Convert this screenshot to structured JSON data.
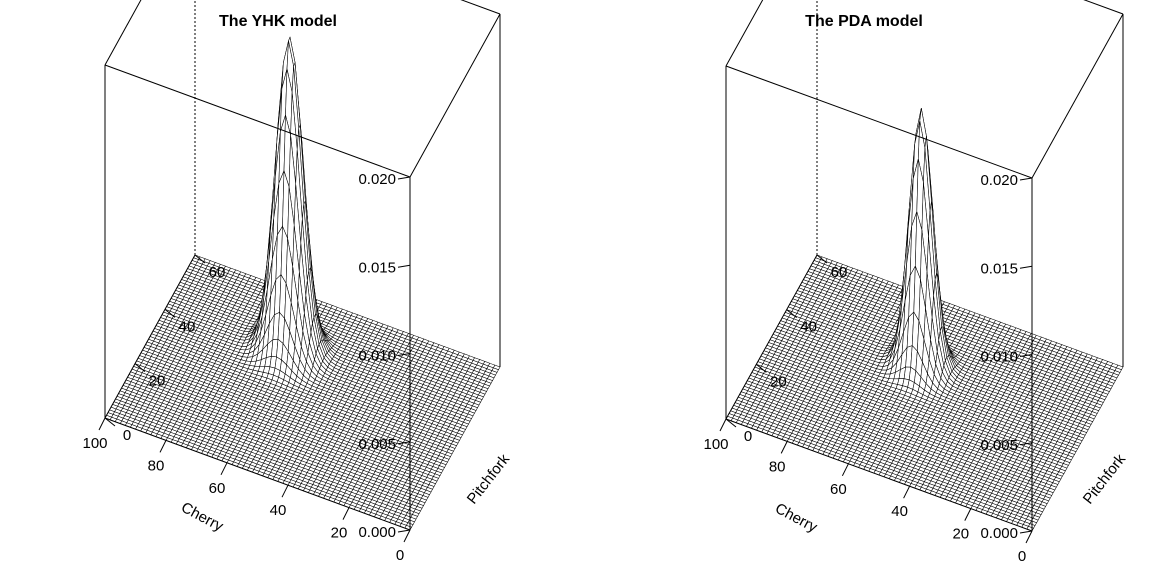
{
  "chart_data": [
    {
      "type": "surface",
      "title": "The YHK model",
      "xlabel": "Cherry",
      "ylabel": "Pitchfork",
      "zlabel": "",
      "xlim": [
        0,
        100
      ],
      "ylim": [
        0,
        65
      ],
      "zlim": [
        0,
        0.02
      ],
      "x_ticks": [
        "0",
        "20",
        "40",
        "60",
        "80",
        "100"
      ],
      "y_ticks": [
        "0",
        "20",
        "40",
        "60"
      ],
      "z_ticks": [
        "0.000",
        "0.005",
        "0.010",
        "0.015",
        "0.020"
      ],
      "peak": {
        "x": 60,
        "y": 45,
        "z": 0.0178,
        "sd_x": 4.2,
        "sd_y": 3.8
      },
      "grid_lines": 60
    },
    {
      "type": "surface",
      "title": "The PDA model",
      "xlabel": "Cherry",
      "ylabel": "Pitchfork",
      "zlabel": "",
      "xlim": [
        0,
        100
      ],
      "ylim": [
        0,
        65
      ],
      "zlim": [
        0,
        0.02
      ],
      "x_ticks": [
        "0",
        "20",
        "40",
        "60",
        "80",
        "100"
      ],
      "y_ticks": [
        "0",
        "20",
        "40",
        "60"
      ],
      "z_ticks": [
        "0.000",
        "0.005",
        "0.010",
        "0.015",
        "0.020"
      ],
      "peak": {
        "x": 55,
        "y": 41,
        "z": 0.0146,
        "sd_x": 3.6,
        "sd_y": 3.2
      },
      "grid_lines": 60
    }
  ]
}
